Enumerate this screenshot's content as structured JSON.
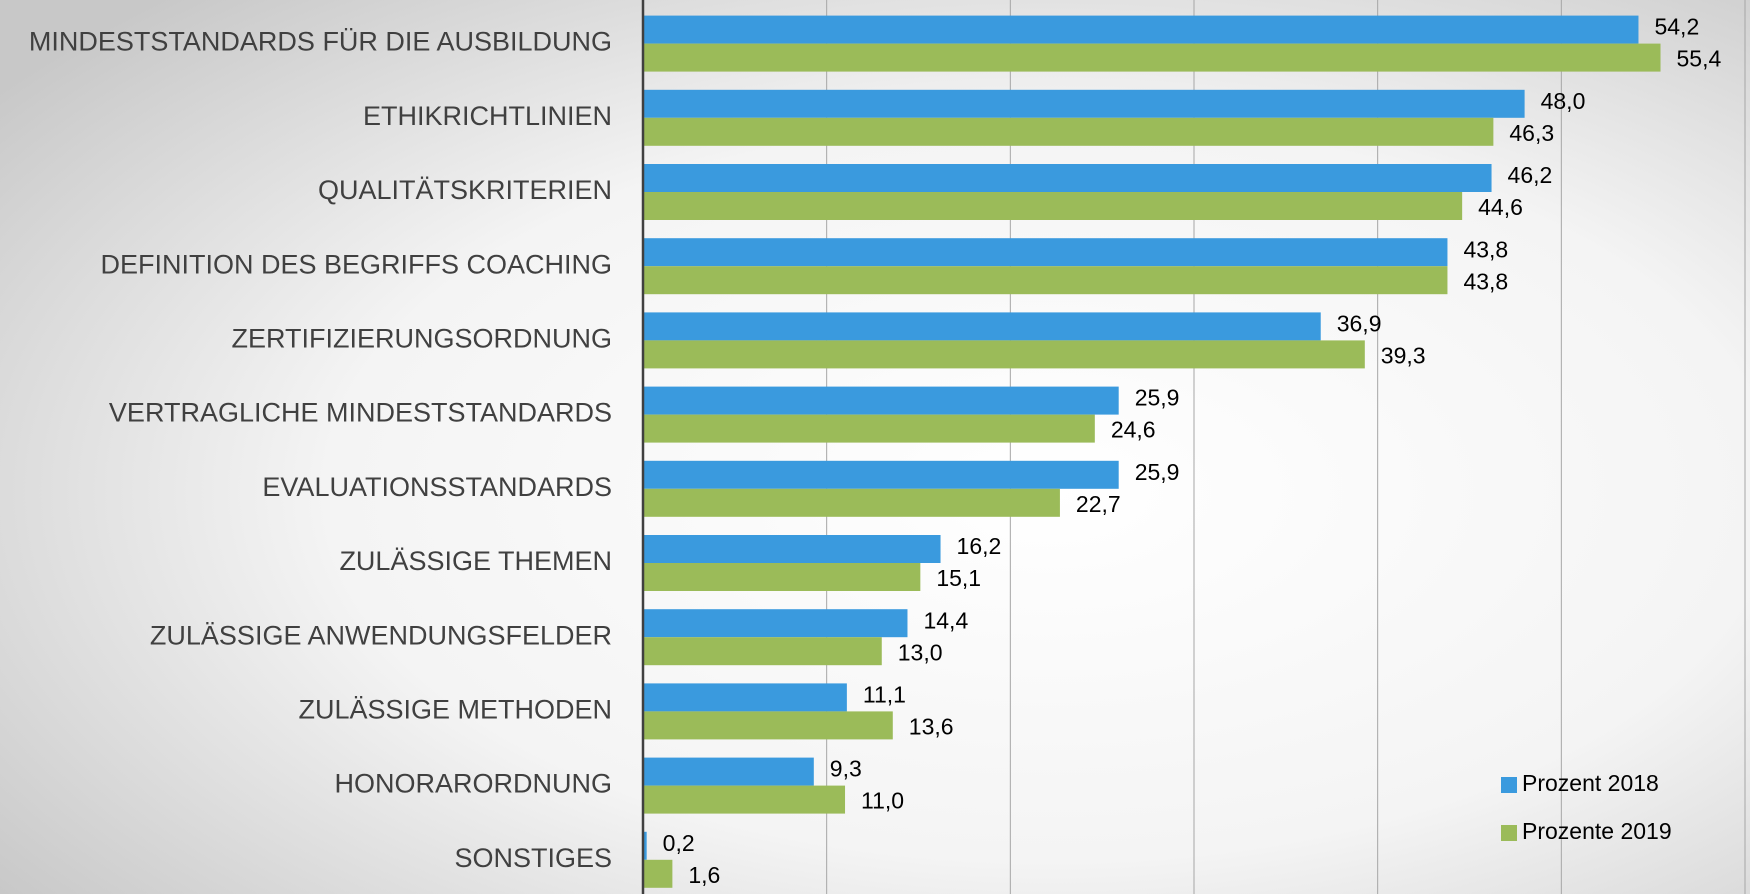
{
  "chart_data": {
    "type": "hbar",
    "categories": [
      "MINDESTSTANDARDS FÜR DIE AUSBILDUNG",
      "ETHIKRICHTLINIEN",
      "QUALITÄTSKRITERIEN",
      "DEFINITION DES BEGRIFFS COACHING",
      "ZERTIFIZIERUNGSORDNUNG",
      "VERTRAGLICHE MINDESTSTANDARDS",
      "EVALUATIONSSTANDARDS",
      "ZULÄSSIGE THEMEN",
      "ZULÄSSIGE ANWENDUNGSFELDER",
      "ZULÄSSIGE METHODEN",
      "HONORARORDNUNG",
      "SONSTIGES"
    ],
    "series": [
      {
        "name": "Prozent 2018",
        "color": "#3a9ade",
        "values": [
          54.2,
          48.0,
          46.2,
          43.8,
          36.9,
          25.9,
          25.9,
          16.2,
          14.4,
          11.1,
          9.3,
          0.2
        ],
        "value_labels": [
          "54,2",
          "48,0",
          "46,2",
          "43,8",
          "36,9",
          "25,9",
          "25,9",
          "16,2",
          "14,4",
          "11,1",
          "9,3",
          "0,2"
        ]
      },
      {
        "name": "Prozente 2019",
        "color": "#9bbb59",
        "values": [
          55.4,
          46.3,
          44.6,
          43.8,
          39.3,
          24.6,
          22.7,
          15.1,
          13.0,
          13.6,
          11.0,
          1.6
        ],
        "value_labels": [
          "55,4",
          "46,3",
          "44,6",
          "43,8",
          "39,3",
          "24,6",
          "22,7",
          "15,1",
          "13,0",
          "13,6",
          "11,0",
          "1,6"
        ]
      }
    ],
    "xlim": [
      0,
      60
    ],
    "xticks": [
      0,
      10,
      20,
      30,
      40,
      50,
      60
    ],
    "tick_labels": false,
    "grid": true,
    "legend": "lower right"
  }
}
